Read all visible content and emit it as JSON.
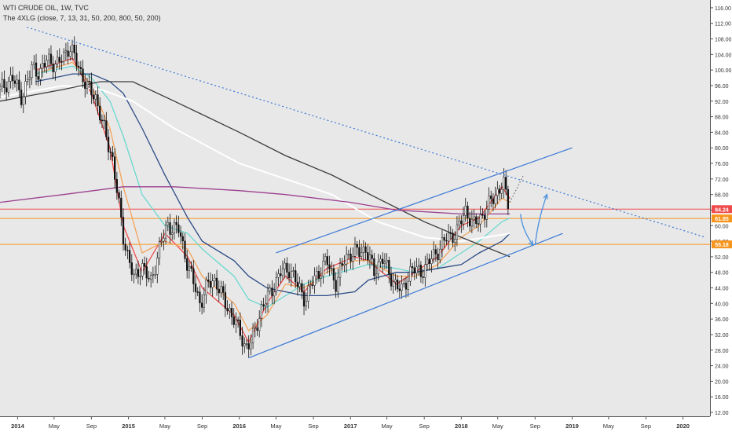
{
  "header": {
    "title": "WTI CRUDE OIL, 1W, TVC",
    "indicator": "The 4XLG (close, 7, 13, 31, 50, 200, 800, 50, 200)"
  },
  "chart_data": {
    "type": "candlestick",
    "title": "WTI CRUDE OIL, 1W, TVC",
    "y_axis": {
      "side": "right",
      "ylim": [
        11,
        118
      ],
      "ticks": [
        "116.00",
        "112.00",
        "108.00",
        "104.00",
        "100.00",
        "96.00",
        "92.00",
        "88.00",
        "84.00",
        "80.00",
        "76.00",
        "72.00",
        "68.00",
        "64.00",
        "60.00",
        "56.00",
        "52.00",
        "48.00",
        "44.00",
        "40.00",
        "36.00",
        "32.00",
        "28.00",
        "24.00",
        "20.00",
        "16.00",
        "12.00"
      ]
    },
    "x_axis": {
      "range": [
        "2013-11-04",
        "2020-03-30"
      ],
      "ticks": [
        {
          "label": "2014",
          "date": "2014-01-01"
        },
        {
          "label": "May",
          "date": "2014-05-01"
        },
        {
          "label": "Sep",
          "date": "2014-09-01"
        },
        {
          "label": "2015",
          "date": "2015-01-01"
        },
        {
          "label": "May",
          "date": "2015-05-01"
        },
        {
          "label": "Sep",
          "date": "2015-09-01"
        },
        {
          "label": "2016",
          "date": "2016-01-01"
        },
        {
          "label": "May",
          "date": "2016-05-01"
        },
        {
          "label": "Sep",
          "date": "2016-09-01"
        },
        {
          "label": "2017",
          "date": "2017-01-01"
        },
        {
          "label": "May",
          "date": "2017-05-01"
        },
        {
          "label": "Sep",
          "date": "2017-09-01"
        },
        {
          "label": "2018",
          "date": "2018-01-01"
        },
        {
          "label": "May",
          "date": "2018-05-01"
        },
        {
          "label": "Sep",
          "date": "2018-09-01"
        },
        {
          "label": "2019",
          "date": "2019-01-01"
        },
        {
          "label": "May",
          "date": "2019-05-01"
        },
        {
          "label": "Sep",
          "date": "2019-09-01"
        },
        {
          "label": "2020",
          "date": "2020-01-01"
        }
      ]
    },
    "price_points": [
      [
        "2013-11-04",
        95
      ],
      [
        "2013-12-15",
        98
      ],
      [
        "2014-01-15",
        93
      ],
      [
        "2014-02-20",
        101
      ],
      [
        "2014-03-15",
        99
      ],
      [
        "2014-04-10",
        103
      ],
      [
        "2014-05-10",
        101
      ],
      [
        "2014-06-20",
        106
      ],
      [
        "2014-07-15",
        102
      ],
      [
        "2014-08-15",
        96
      ],
      [
        "2014-09-15",
        93
      ],
      [
        "2014-10-15",
        84
      ],
      [
        "2014-11-10",
        77
      ],
      [
        "2014-12-15",
        57
      ],
      [
        "2015-01-20",
        46
      ],
      [
        "2015-02-15",
        50
      ],
      [
        "2015-03-15",
        45
      ],
      [
        "2015-04-15",
        55
      ],
      [
        "2015-05-10",
        60
      ],
      [
        "2015-06-15",
        59
      ],
      [
        "2015-07-15",
        50
      ],
      [
        "2015-08-25",
        40
      ],
      [
        "2015-09-20",
        45
      ],
      [
        "2015-10-15",
        46
      ],
      [
        "2015-11-15",
        40
      ],
      [
        "2015-12-15",
        36
      ],
      [
        "2016-01-20",
        29
      ],
      [
        "2016-02-10",
        30
      ],
      [
        "2016-03-15",
        39
      ],
      [
        "2016-04-15",
        43
      ],
      [
        "2016-05-15",
        48
      ],
      [
        "2016-06-15",
        49
      ],
      [
        "2016-07-15",
        44
      ],
      [
        "2016-08-05",
        41
      ],
      [
        "2016-09-01",
        46
      ],
      [
        "2016-10-15",
        51
      ],
      [
        "2016-11-15",
        45
      ],
      [
        "2016-12-15",
        52
      ],
      [
        "2017-01-15",
        53
      ],
      [
        "2017-02-20",
        54
      ],
      [
        "2017-03-20",
        48
      ],
      [
        "2017-04-15",
        52
      ],
      [
        "2017-05-10",
        47
      ],
      [
        "2017-06-20",
        43
      ],
      [
        "2017-07-20",
        49
      ],
      [
        "2017-08-20",
        48
      ],
      [
        "2017-09-20",
        51
      ],
      [
        "2017-10-20",
        54
      ],
      [
        "2017-11-15",
        57
      ],
      [
        "2017-12-15",
        58
      ],
      [
        "2018-01-15",
        64
      ],
      [
        "2018-02-10",
        60
      ],
      [
        "2018-03-15",
        63
      ],
      [
        "2018-04-15",
        67
      ],
      [
        "2018-05-20",
        71
      ],
      [
        "2018-06-01",
        66
      ],
      [
        "2018-06-10",
        65
      ]
    ],
    "series": [
      {
        "name": "7",
        "color": "#ef4b4b",
        "points": [
          [
            "2014-03-01",
            100
          ],
          [
            "2014-07-01",
            103
          ],
          [
            "2014-09-01",
            94
          ],
          [
            "2014-11-01",
            80
          ],
          [
            "2014-12-15",
            60
          ],
          [
            "2015-02-15",
            48
          ],
          [
            "2015-05-01",
            58
          ],
          [
            "2015-07-15",
            52
          ],
          [
            "2015-09-01",
            44
          ],
          [
            "2015-12-15",
            37
          ],
          [
            "2016-02-01",
            30
          ],
          [
            "2016-04-01",
            40
          ],
          [
            "2016-06-01",
            47
          ],
          [
            "2016-08-01",
            43
          ],
          [
            "2016-10-15",
            49
          ],
          [
            "2017-01-15",
            52
          ],
          [
            "2017-03-01",
            51
          ],
          [
            "2017-06-01",
            45
          ],
          [
            "2017-08-01",
            48
          ],
          [
            "2017-10-15",
            52
          ],
          [
            "2018-01-01",
            60
          ],
          [
            "2018-03-01",
            62
          ],
          [
            "2018-05-15",
            70
          ],
          [
            "2018-06-10",
            67
          ]
        ]
      },
      {
        "name": "13",
        "color": "#f5a35a",
        "points": [
          [
            "2014-03-01",
            99
          ],
          [
            "2014-07-01",
            102
          ],
          [
            "2014-09-01",
            96
          ],
          [
            "2014-11-01",
            85
          ],
          [
            "2014-12-15",
            70
          ],
          [
            "2015-02-15",
            53
          ],
          [
            "2015-05-01",
            56
          ],
          [
            "2015-07-15",
            54
          ],
          [
            "2015-09-01",
            47
          ],
          [
            "2015-12-15",
            40
          ],
          [
            "2016-02-01",
            33
          ],
          [
            "2016-04-01",
            37
          ],
          [
            "2016-06-01",
            45
          ],
          [
            "2016-08-01",
            44
          ],
          [
            "2016-10-15",
            48
          ],
          [
            "2017-01-15",
            51
          ],
          [
            "2017-03-01",
            51
          ],
          [
            "2017-06-01",
            47
          ],
          [
            "2017-08-01",
            47
          ],
          [
            "2017-10-15",
            50
          ],
          [
            "2018-01-01",
            57
          ],
          [
            "2018-03-01",
            60
          ],
          [
            "2018-05-15",
            67
          ],
          [
            "2018-06-10",
            66
          ]
        ]
      },
      {
        "name": "31",
        "color": "#6ad8d0",
        "points": [
          [
            "2014-03-01",
            99
          ],
          [
            "2014-07-01",
            101
          ],
          [
            "2014-09-01",
            98
          ],
          [
            "2014-11-01",
            92
          ],
          [
            "2014-12-15",
            83
          ],
          [
            "2015-02-15",
            68
          ],
          [
            "2015-05-01",
            60
          ],
          [
            "2015-07-15",
            58
          ],
          [
            "2015-09-01",
            54
          ],
          [
            "2015-12-15",
            47
          ],
          [
            "2016-02-01",
            41
          ],
          [
            "2016-04-01",
            39
          ],
          [
            "2016-06-01",
            42
          ],
          [
            "2016-08-01",
            45
          ],
          [
            "2016-10-15",
            47
          ],
          [
            "2017-01-15",
            49
          ],
          [
            "2017-03-01",
            50
          ],
          [
            "2017-06-01",
            49
          ],
          [
            "2017-08-01",
            48
          ],
          [
            "2017-10-15",
            49
          ],
          [
            "2018-01-01",
            53
          ],
          [
            "2018-03-01",
            56
          ],
          [
            "2018-05-15",
            61
          ],
          [
            "2018-06-10",
            62
          ]
        ]
      },
      {
        "name": "50",
        "color": "#2c4b86",
        "points": [
          [
            "2014-03-01",
            97
          ],
          [
            "2014-07-01",
            99
          ],
          [
            "2014-09-01",
            99
          ],
          [
            "2014-11-01",
            97
          ],
          [
            "2014-12-15",
            94
          ],
          [
            "2015-02-15",
            85
          ],
          [
            "2015-05-01",
            73
          ],
          [
            "2015-07-15",
            62
          ],
          [
            "2015-09-01",
            56
          ],
          [
            "2015-12-15",
            51
          ],
          [
            "2016-02-01",
            47
          ],
          [
            "2016-04-01",
            44
          ],
          [
            "2016-06-01",
            43
          ],
          [
            "2016-08-01",
            42
          ],
          [
            "2016-10-15",
            42
          ],
          [
            "2017-01-15",
            43
          ],
          [
            "2017-03-01",
            46
          ],
          [
            "2017-06-01",
            48
          ],
          [
            "2017-08-01",
            48
          ],
          [
            "2017-10-15",
            49
          ],
          [
            "2018-01-01",
            50
          ],
          [
            "2018-03-01",
            53
          ],
          [
            "2018-05-15",
            56
          ],
          [
            "2018-06-10",
            58
          ]
        ]
      },
      {
        "name": "200",
        "color": "#ffffff",
        "points": [
          [
            "2013-11-04",
            93
          ],
          [
            "2014-06-01",
            96
          ],
          [
            "2014-10-01",
            95
          ],
          [
            "2015-01-15",
            92
          ],
          [
            "2015-06-01",
            85
          ],
          [
            "2016-01-01",
            76
          ],
          [
            "2016-06-01",
            72
          ],
          [
            "2016-11-01",
            68
          ],
          [
            "2017-04-01",
            61
          ],
          [
            "2017-09-01",
            57
          ],
          [
            "2018-01-01",
            56
          ],
          [
            "2018-06-10",
            58
          ]
        ]
      },
      {
        "name": "800",
        "color": "#3c3c3c",
        "points": [
          [
            "2013-11-04",
            92
          ],
          [
            "2014-06-01",
            95
          ],
          [
            "2014-10-01",
            97
          ],
          [
            "2015-01-15",
            97
          ],
          [
            "2015-06-01",
            92
          ],
          [
            "2016-01-01",
            84
          ],
          [
            "2016-06-01",
            78
          ],
          [
            "2016-11-01",
            73
          ],
          [
            "2017-04-01",
            67
          ],
          [
            "2017-09-01",
            61
          ],
          [
            "2018-01-01",
            57
          ],
          [
            "2018-06-10",
            52
          ]
        ]
      },
      {
        "name": "purple",
        "color": "#9c3f8e",
        "points": [
          [
            "2013-11-04",
            66
          ],
          [
            "2014-06-01",
            68
          ],
          [
            "2014-12-15",
            70
          ],
          [
            "2015-06-01",
            70
          ],
          [
            "2016-01-01",
            69
          ],
          [
            "2016-06-01",
            68
          ],
          [
            "2017-01-01",
            66
          ],
          [
            "2017-06-01",
            64
          ],
          [
            "2018-01-01",
            63
          ],
          [
            "2018-06-10",
            63
          ]
        ]
      }
    ],
    "horizontal_levels": [
      {
        "value": 64.24,
        "label": "64.24",
        "color": "#ef4b4b"
      },
      {
        "value": 61.85,
        "label": "61.85",
        "color": "#f7941d"
      },
      {
        "value": 55.18,
        "label": "55.18",
        "color": "#f7941d"
      }
    ],
    "trend_lines": [
      {
        "name": "long-term downtrend",
        "style": "dotted",
        "color": "#3a78d6",
        "from": [
          "2014-02-01",
          111
        ],
        "to": [
          "2020-03-15",
          57
        ]
      },
      {
        "name": "channel upper",
        "style": "solid",
        "color": "#3a78d6",
        "from": [
          "2016-05-01",
          53
        ],
        "to": [
          "2019-01-01",
          80
        ]
      },
      {
        "name": "channel lower",
        "style": "solid",
        "color": "#3a78d6",
        "from": [
          "2016-02-01",
          26
        ],
        "to": [
          "2018-12-01",
          58
        ]
      }
    ],
    "projection_arrows": [
      {
        "from": [
          "2018-07-15",
          63
        ],
        "to": [
          "2018-08-25",
          55
        ]
      },
      {
        "from": [
          "2018-09-01",
          55
        ],
        "to": [
          "2018-10-10",
          68
        ]
      }
    ],
    "projection_dotted": {
      "from": [
        "2018-06-10",
        66
      ],
      "to": [
        "2018-07-25",
        73
      ]
    }
  }
}
